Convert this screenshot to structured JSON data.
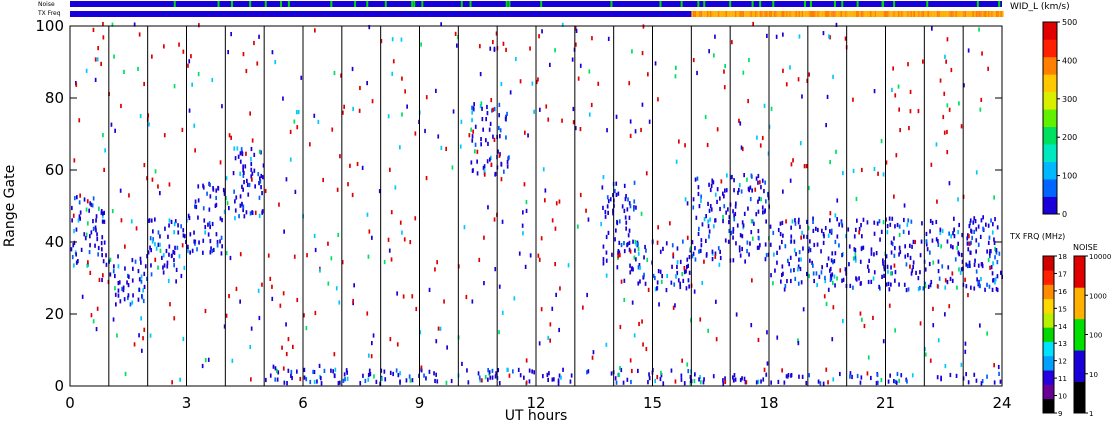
{
  "strip": {
    "noise_label": "Noise",
    "freq_label": "TX Freq"
  },
  "chart_data": {
    "type": "heatmap",
    "title": "",
    "xlabel": "UT hours",
    "ylabel": "Range Gate",
    "xlim": [
      0,
      24
    ],
    "ylim": [
      0,
      100
    ],
    "x_ticks": [
      "0",
      "3",
      "6",
      "9",
      "12",
      "15",
      "18",
      "21",
      "24"
    ],
    "y_ticks": [
      "0",
      "20",
      "40",
      "60",
      "80",
      "100"
    ],
    "hour_gridlines": [
      1,
      2,
      3,
      4,
      5,
      6,
      7,
      8,
      9,
      10,
      11,
      12,
      13,
      14,
      15,
      16,
      17,
      18,
      19,
      20,
      21,
      22,
      23
    ],
    "freq_switch_hour": 16,
    "dense_regions": [
      {
        "x0": 0.0,
        "x1": 1.0,
        "y0": 32,
        "y1": 52
      },
      {
        "x0": 1.0,
        "x1": 2.0,
        "y0": 22,
        "y1": 36
      },
      {
        "x0": 2.0,
        "x1": 3.0,
        "y0": 28,
        "y1": 46
      },
      {
        "x0": 3.0,
        "x1": 4.0,
        "y0": 36,
        "y1": 56
      },
      {
        "x0": 4.0,
        "x1": 5.0,
        "y0": 46,
        "y1": 66
      },
      {
        "x0": 10.3,
        "x1": 11.3,
        "y0": 58,
        "y1": 78
      },
      {
        "x0": 13.7,
        "x1": 14.6,
        "y0": 30,
        "y1": 56
      },
      {
        "x0": 14.6,
        "x1": 16.0,
        "y0": 26,
        "y1": 40
      },
      {
        "x0": 16.0,
        "x1": 18.0,
        "y0": 34,
        "y1": 58
      },
      {
        "x0": 18.0,
        "x1": 24.0,
        "y0": 26,
        "y1": 46
      },
      {
        "x0": 5.0,
        "x1": 16.0,
        "y0": 0,
        "y1": 4
      },
      {
        "x0": 16.0,
        "x1": 24.0,
        "y0": 0,
        "y1": 3
      }
    ],
    "width_colorbar": {
      "title": "WID_L (km/s)",
      "ticks": [
        "0",
        "100",
        "200",
        "300",
        "400",
        "500"
      ],
      "colors": [
        "#1a00d8",
        "#0066ff",
        "#00b8ff",
        "#00e8c0",
        "#00e060",
        "#60f000",
        "#d8f000",
        "#ffc800",
        "#ff8000",
        "#ff2000",
        "#e00000"
      ]
    },
    "freq_colorbar": {
      "title": "TX FRQ (MHz)",
      "ticks": [
        "9",
        "10",
        "11",
        "12",
        "13",
        "14",
        "15",
        "16",
        "17",
        "18"
      ],
      "colors": [
        "#000000",
        "#6a0096",
        "#2800e0",
        "#00a0ff",
        "#00e0ff",
        "#00d800",
        "#b8f000",
        "#ffd800",
        "#ff8c00",
        "#ff2000",
        "#d00000"
      ]
    },
    "noise_colorbar": {
      "title": "NOISE",
      "ticks": [
        "1",
        "10",
        "100",
        "1000",
        "10000"
      ],
      "colors": [
        "#000000",
        "#1a00d8",
        "#00e000",
        "#ffb000",
        "#e00000"
      ]
    },
    "colors": {
      "noise_strip": "#1a00d8",
      "noise_strip_alt": "#00e000",
      "freq_strip_before": "#1a00d8",
      "freq_strip_after": "#ffb000",
      "freq_strip_after_alt": "#ff8000",
      "scatter_main": "#1a00d8",
      "scatter_mid": "#0060ff",
      "scatter_light": "#00c8ff",
      "scatter_green": "#00e060",
      "scatter_red": "#e00000"
    }
  }
}
